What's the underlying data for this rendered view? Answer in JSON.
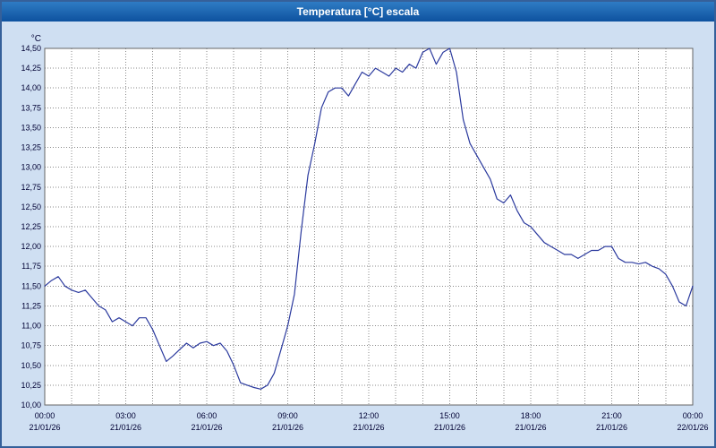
{
  "window": {
    "title": "Temperatura [°C] escala"
  },
  "colors": {
    "line": "#2b3a9e",
    "grid": "#8a8a8a",
    "plot_background": "#ffffff",
    "outer_background": "#cfdff2",
    "titlebar": "#1565b0",
    "axis_text": "#000033",
    "plot_border": "#666666"
  },
  "chart_data": {
    "type": "line",
    "title": "Temperatura [°C] escala",
    "ylabel": "°C",
    "unit_label": "°C",
    "ylim": [
      10.0,
      14.5
    ],
    "y_tick_step": 0.25,
    "y_tick_labels": [
      "10,00",
      "10,25",
      "10,50",
      "10,75",
      "11,00",
      "11,25",
      "11,50",
      "11,75",
      "12,00",
      "12,25",
      "12,50",
      "12,75",
      "13,00",
      "13,25",
      "13,50",
      "13,75",
      "14,00",
      "14,25",
      "14,50"
    ],
    "xlim": [
      0,
      24
    ],
    "x_minor_grid_step_hours": 1,
    "x_tick_hours": [
      0,
      3,
      6,
      9,
      12,
      15,
      18,
      21,
      24
    ],
    "x_ticks": [
      {
        "time": "00:00",
        "date": "21/01/26"
      },
      {
        "time": "03:00",
        "date": "21/01/26"
      },
      {
        "time": "06:00",
        "date": "21/01/26"
      },
      {
        "time": "09:00",
        "date": "21/01/26"
      },
      {
        "time": "12:00",
        "date": "21/01/26"
      },
      {
        "time": "15:00",
        "date": "21/01/26"
      },
      {
        "time": "18:00",
        "date": "21/01/26"
      },
      {
        "time": "21:00",
        "date": "21/01/26"
      },
      {
        "time": "00:00",
        "date": "22/01/26"
      }
    ],
    "grid": true,
    "legend": "none",
    "series": [
      {
        "name": "Temperatura",
        "x_start": 0,
        "x_step": 0.25,
        "values": [
          11.5,
          11.57,
          11.62,
          11.5,
          11.45,
          11.42,
          11.45,
          11.35,
          11.25,
          11.2,
          11.05,
          11.1,
          11.05,
          11.0,
          11.1,
          11.1,
          10.95,
          10.75,
          10.55,
          10.62,
          10.7,
          10.78,
          10.72,
          10.78,
          10.8,
          10.75,
          10.78,
          10.68,
          10.5,
          10.28,
          10.25,
          10.22,
          10.2,
          10.25,
          10.4,
          10.7,
          11.0,
          11.4,
          12.2,
          12.9,
          13.3,
          13.75,
          13.95,
          14.0,
          14.0,
          13.9,
          14.05,
          14.2,
          14.15,
          14.25,
          14.2,
          14.15,
          14.25,
          14.2,
          14.3,
          14.25,
          14.45,
          14.5,
          14.3,
          14.45,
          14.5,
          14.2,
          13.6,
          13.3,
          13.15,
          13.0,
          12.85,
          12.6,
          12.55,
          12.65,
          12.45,
          12.3,
          12.25,
          12.15,
          12.05,
          12.0,
          11.95,
          11.9,
          11.9,
          11.85,
          11.9,
          11.95,
          11.95,
          12.0,
          12.0,
          11.85,
          11.8,
          11.8,
          11.78,
          11.8,
          11.75,
          11.72,
          11.65,
          11.5,
          11.3,
          11.25,
          11.5
        ]
      }
    ]
  }
}
